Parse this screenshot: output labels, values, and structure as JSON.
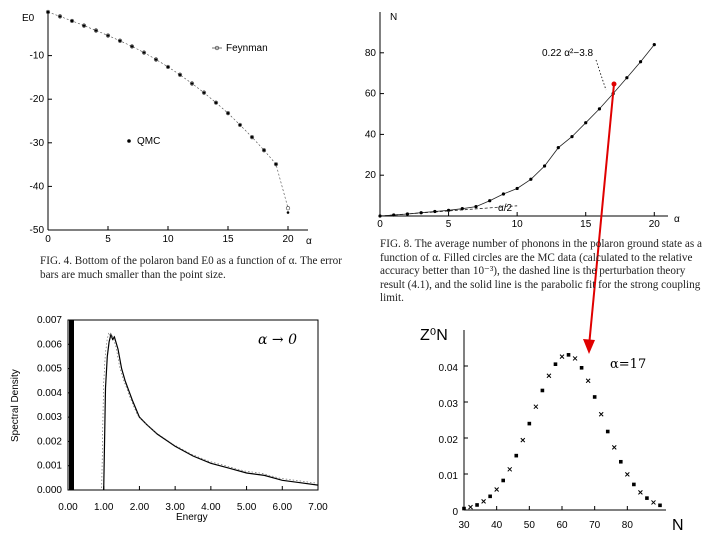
{
  "figures": {
    "fig4": {
      "caption": "FIG. 4. Bottom of the polaron band E0 as a function of α. The error bars are much smaller than the point size."
    },
    "fig8": {
      "caption": "FIG. 8. The average number of phonons in the polaron ground state as a function of α. Filled circles are the MC data (calculated to the relative accuracy better than 10⁻³), the dashed line is the perturbation theory result (4.1), and the solid line is the parabolic fit for the strong coupling limit."
    }
  },
  "chart_data": [
    {
      "id": "fig4",
      "type": "scatter",
      "title": "",
      "xlabel": "α",
      "ylabel": "E0",
      "xlim": [
        0,
        21
      ],
      "ylim": [
        -50,
        0
      ],
      "xticks": [
        "0",
        "5",
        "10",
        "15",
        "20"
      ],
      "yticks": [
        "-10",
        "-20",
        "-30",
        "-40",
        "-50"
      ],
      "legend": [
        {
          "name": "Feynman",
          "marker": "open-circle-line"
        },
        {
          "name": "QMC",
          "marker": "filled-dot"
        }
      ],
      "series": [
        {
          "name": "QMC",
          "x": [
            0,
            1,
            2,
            3,
            4,
            5,
            6,
            7,
            8,
            9,
            10,
            11,
            12,
            13,
            14,
            15,
            16,
            17,
            18,
            19,
            20
          ],
          "values": [
            0,
            -1.01,
            -2.05,
            -3.13,
            -4.25,
            -5.4,
            -6.6,
            -7.9,
            -9.3,
            -10.9,
            -12.6,
            -14.4,
            -16.4,
            -18.5,
            -20.8,
            -23.2,
            -25.9,
            -28.7,
            -31.7,
            -34.9,
            -46
          ]
        },
        {
          "name": "Feynman",
          "x": [
            0,
            1,
            2,
            3,
            4,
            5,
            6,
            7,
            8,
            9,
            10,
            11,
            12,
            13,
            14,
            15,
            16,
            17,
            18,
            19,
            20
          ],
          "values": [
            0,
            -1.01,
            -2.05,
            -3.13,
            -4.25,
            -5.4,
            -6.6,
            -7.9,
            -9.3,
            -10.9,
            -12.6,
            -14.4,
            -16.4,
            -18.5,
            -20.8,
            -23.2,
            -25.9,
            -28.7,
            -31.7,
            -34.9,
            -45
          ]
        }
      ]
    },
    {
      "id": "fig8",
      "type": "line",
      "title": "",
      "xlabel": "α",
      "ylabel": "N",
      "xlim": [
        0,
        21
      ],
      "ylim": [
        0,
        100
      ],
      "xticks": [
        "0",
        "5",
        "10",
        "15",
        "20"
      ],
      "yticks": [
        "20",
        "40",
        "60",
        "80"
      ],
      "annotations": [
        {
          "text": "0.22 α²−3.8",
          "at_x": 17,
          "at_y": 60
        },
        {
          "text": "α/2",
          "at_x": 7,
          "at_y": 5
        }
      ],
      "series": [
        {
          "name": "MC data",
          "x": [
            0,
            1,
            2,
            3,
            4,
            5,
            6,
            7,
            8,
            9,
            10,
            11,
            12,
            13,
            14,
            15,
            16,
            17,
            18,
            19,
            20
          ],
          "values": [
            0,
            0.5,
            1.0,
            1.6,
            2.2,
            2.8,
            3.6,
            4.6,
            7.5,
            10.8,
            13.5,
            18.0,
            24.5,
            33.5,
            38.9,
            45.7,
            52.5,
            60.0,
            67.8,
            75.6,
            84.0
          ]
        },
        {
          "name": "perturbation α/2",
          "x": [
            0,
            10
          ],
          "values": [
            0,
            5
          ]
        }
      ]
    },
    {
      "id": "spectral",
      "type": "line",
      "title": "α → 0",
      "xlabel": "Energy",
      "ylabel": "Spectral Density",
      "xlim": [
        0,
        7
      ],
      "ylim": [
        0,
        0.007
      ],
      "xticks": [
        "0.00",
        "1.00",
        "2.00",
        "3.00",
        "4.00",
        "5.00",
        "6.00",
        "7.00"
      ],
      "yticks": [
        "0.000",
        "0.001",
        "0.002",
        "0.003",
        "0.004",
        "0.005",
        "0.006",
        "0.007"
      ],
      "series": [
        {
          "name": "Spectral Density",
          "x": [
            1.0,
            1.05,
            1.1,
            1.15,
            1.2,
            1.25,
            1.3,
            1.4,
            1.5,
            1.6,
            1.8,
            2.0,
            2.2,
            2.5,
            2.8,
            3.0,
            3.5,
            4.0,
            4.5,
            5.0,
            5.5,
            6.0,
            6.5,
            7.0
          ],
          "values": [
            0.0,
            0.0042,
            0.0055,
            0.0061,
            0.0064,
            0.0062,
            0.0063,
            0.0058,
            0.005,
            0.0045,
            0.0037,
            0.003,
            0.0027,
            0.0023,
            0.002,
            0.0018,
            0.0014,
            0.0011,
            0.0009,
            0.0007,
            0.0006,
            0.0004,
            0.0003,
            0.0002
          ]
        }
      ]
    },
    {
      "id": "zn",
      "type": "scatter",
      "title": "α=17",
      "xlabel": "N",
      "ylabel": "Z⁰N",
      "xlim": [
        30,
        90
      ],
      "ylim": [
        0,
        0.05
      ],
      "xticks": [
        "30",
        "40",
        "50",
        "60",
        "70",
        "80"
      ],
      "yticks": [
        "0",
        "0.01",
        "0.02",
        "0.03",
        "0.04"
      ],
      "series": [
        {
          "name": "Z_N",
          "x": [
            30,
            32,
            34,
            36,
            38,
            40,
            42,
            44,
            46,
            48,
            50,
            52,
            54,
            56,
            58,
            60,
            62,
            64,
            66,
            68,
            70,
            72,
            74,
            76,
            78,
            80,
            82,
            84,
            86,
            88,
            90
          ],
          "values": [
            0.0004,
            0.0008,
            0.0014,
            0.0024,
            0.0038,
            0.0057,
            0.0082,
            0.0113,
            0.0151,
            0.0194,
            0.024,
            0.0287,
            0.0332,
            0.0373,
            0.0405,
            0.0426,
            0.0431,
            0.0421,
            0.0395,
            0.0359,
            0.0314,
            0.0266,
            0.0218,
            0.0174,
            0.0134,
            0.0099,
            0.0071,
            0.0049,
            0.0033,
            0.0021,
            0.0013
          ]
        }
      ]
    }
  ]
}
